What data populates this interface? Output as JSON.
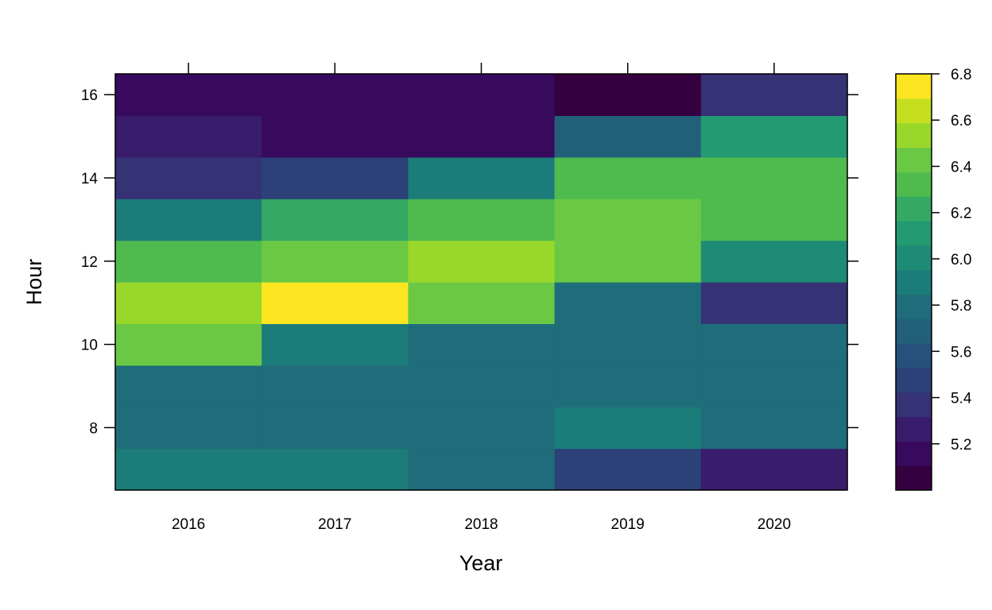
{
  "chart_data": {
    "type": "heatmap",
    "xlabel": "Year",
    "ylabel": "Hour",
    "x": [
      "2016",
      "2017",
      "2018",
      "2019",
      "2020"
    ],
    "y": [
      7,
      8,
      9,
      10,
      11,
      12,
      13,
      14,
      15,
      16
    ],
    "x_ticks": [
      "2016",
      "2017",
      "2018",
      "2019",
      "2020"
    ],
    "y_ticks": [
      8,
      10,
      12,
      14,
      16
    ],
    "values": [
      [
        5.85,
        5.85,
        5.75,
        5.5,
        5.25
      ],
      [
        5.75,
        5.75,
        5.75,
        5.85,
        5.75
      ],
      [
        5.75,
        5.75,
        5.75,
        5.75,
        5.75
      ],
      [
        6.45,
        5.95,
        5.75,
        5.75,
        5.75
      ],
      [
        6.55,
        6.75,
        6.45,
        5.75,
        5.35
      ],
      [
        6.35,
        6.45,
        6.55,
        6.45,
        6.05
      ],
      [
        5.95,
        6.25,
        6.35,
        6.45,
        6.35
      ],
      [
        5.35,
        5.45,
        5.85,
        6.35,
        6.35
      ],
      [
        5.25,
        5.15,
        5.15,
        5.65,
        6.15
      ],
      [
        5.15,
        5.15,
        5.15,
        5.05,
        5.35
      ]
    ],
    "colorbar": {
      "min": 5.0,
      "max": 6.8,
      "ticks": [
        "5.2",
        "5.4",
        "5.6",
        "5.8",
        "6.0",
        "6.2",
        "6.4",
        "6.6",
        "6.8"
      ],
      "colors": [
        "#35003f",
        "#380a5e",
        "#3a1c6c",
        "#353275",
        "#2c4178",
        "#26517d",
        "#22607a",
        "#1f6d7b",
        "#1c7c79",
        "#1e8b76",
        "#239a71",
        "#35a964",
        "#4fbb4f",
        "#6bc845",
        "#99d72a",
        "#c5df20",
        "#fde521"
      ]
    }
  }
}
